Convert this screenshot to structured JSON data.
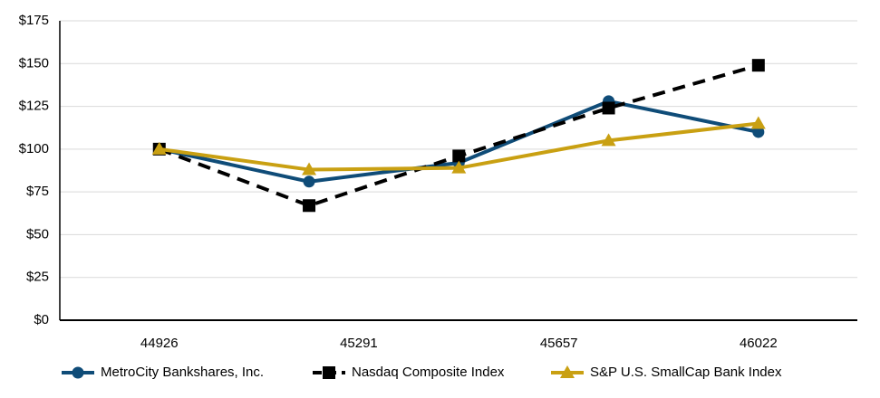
{
  "chart_data": {
    "type": "line",
    "x": [
      44926,
      45200,
      45474,
      45748,
      46022
    ],
    "xlim": [
      44744,
      46203
    ],
    "xticks": [
      44926,
      45291,
      45657,
      46022
    ],
    "ylim": [
      0,
      175
    ],
    "yticks": [
      {
        "value": 0,
        "label": "$0"
      },
      {
        "value": 25,
        "label": "$25"
      },
      {
        "value": 50,
        "label": "$50"
      },
      {
        "value": 75,
        "label": "$75"
      },
      {
        "value": 100,
        "label": "$100"
      },
      {
        "value": 125,
        "label": "$125"
      },
      {
        "value": 150,
        "label": "$150"
      },
      {
        "value": 175,
        "label": "$175"
      }
    ],
    "grid": true,
    "legend": "bottom",
    "series": [
      {
        "name": "MetroCity Bankshares, Inc.",
        "color": "#0f4c78",
        "marker": "circle",
        "dashed": false,
        "values": [
          100,
          81,
          92,
          128,
          110
        ]
      },
      {
        "name": "Nasdaq Composite Index",
        "color": "#000000",
        "marker": "square",
        "dashed": true,
        "values": [
          100,
          67,
          96,
          124,
          149
        ]
      },
      {
        "name": "S&P U.S. SmallCap Bank Index",
        "color": "#c9a012",
        "marker": "triangle",
        "dashed": false,
        "values": [
          100,
          88,
          89,
          105,
          115
        ]
      }
    ]
  }
}
